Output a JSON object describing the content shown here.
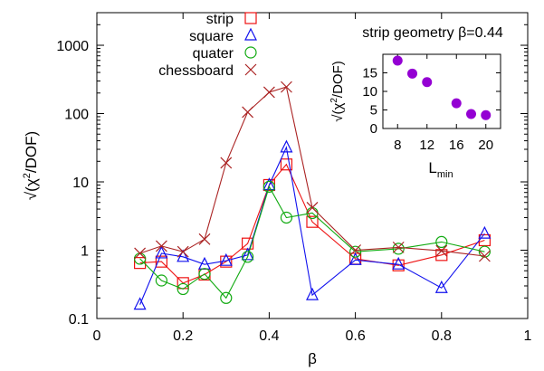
{
  "chart_data": [
    {
      "type": "line",
      "xlabel": "β",
      "ylabel_root": "√",
      "ylabel_base": "(χ",
      "ylabel_sup": "2",
      "ylabel_tail": "/DOF)",
      "xlim": [
        0,
        1
      ],
      "ylim": [
        0.1,
        3000
      ],
      "yscale": "log",
      "xticks": [
        0,
        0.2,
        0.4,
        0.6,
        0.8,
        1
      ],
      "xticklabels": [
        "0",
        "0.2",
        "0.4",
        "0.6",
        "0.8",
        "1"
      ],
      "yticks": [
        0.1,
        1,
        10,
        100,
        1000
      ],
      "yticklabels": [
        "0.1",
        "1",
        "10",
        "100",
        "1000"
      ],
      "grid": false,
      "legend": "top-left",
      "series": [
        {
          "name": "strip",
          "marker": "square",
          "color": "#ee1111",
          "x": [
            0.1,
            0.15,
            0.2,
            0.25,
            0.3,
            0.35,
            0.4,
            0.44,
            0.5,
            0.6,
            0.7,
            0.8,
            0.9
          ],
          "y": [
            0.65,
            0.68,
            0.33,
            0.44,
            0.68,
            1.25,
            9.0,
            18.0,
            2.6,
            0.75,
            0.6,
            0.85,
            1.4
          ]
        },
        {
          "name": "square",
          "marker": "triangle",
          "color": "#1111ee",
          "x": [
            0.1,
            0.15,
            0.2,
            0.25,
            0.3,
            0.35,
            0.4,
            0.44,
            0.5,
            0.6,
            0.7,
            0.8,
            0.9
          ],
          "y": [
            0.16,
            0.9,
            0.8,
            0.62,
            0.7,
            0.85,
            9.0,
            32.0,
            0.22,
            0.72,
            0.62,
            0.28,
            1.75
          ]
        },
        {
          "name": "quater",
          "marker": "circle",
          "color": "#11aa11",
          "x": [
            0.1,
            0.15,
            0.2,
            0.25,
            0.3,
            0.35,
            0.4,
            0.44,
            0.5,
            0.6,
            0.7,
            0.8,
            0.9
          ],
          "y": [
            0.75,
            0.36,
            0.27,
            0.45,
            0.2,
            0.8,
            8.5,
            3.0,
            3.5,
            0.95,
            1.05,
            1.32,
            0.95
          ]
        },
        {
          "name": "chessboard",
          "marker": "cross",
          "color": "#aa2222",
          "x": [
            0.1,
            0.15,
            0.2,
            0.25,
            0.3,
            0.35,
            0.4,
            0.44,
            0.5,
            0.6,
            0.7,
            0.8,
            0.9
          ],
          "y": [
            0.9,
            1.15,
            0.95,
            1.45,
            19.0,
            105.0,
            205.0,
            245.0,
            4.2,
            1.0,
            1.1,
            0.98,
            0.82
          ]
        }
      ]
    },
    {
      "type": "scatter",
      "title": "strip geometry β=0.44",
      "xlabel_base": "L",
      "xlabel_sub": "min",
      "ylabel_root": "√",
      "ylabel_base": "(χ",
      "ylabel_sup": "2",
      "ylabel_tail": "/DOF)",
      "xlim": [
        6,
        22
      ],
      "ylim": [
        0,
        20
      ],
      "xticks": [
        8,
        12,
        16,
        20
      ],
      "xticklabels": [
        "8",
        "12",
        "16",
        "20"
      ],
      "yticks": [
        0,
        5,
        10,
        15
      ],
      "yticklabels": [
        "0",
        "5",
        "10",
        "15"
      ],
      "series": [
        {
          "color": "#9400d3",
          "x": [
            8,
            10,
            12,
            16,
            18,
            20
          ],
          "y": [
            18.3,
            14.8,
            12.5,
            6.8,
            3.9,
            3.6
          ]
        }
      ]
    }
  ]
}
